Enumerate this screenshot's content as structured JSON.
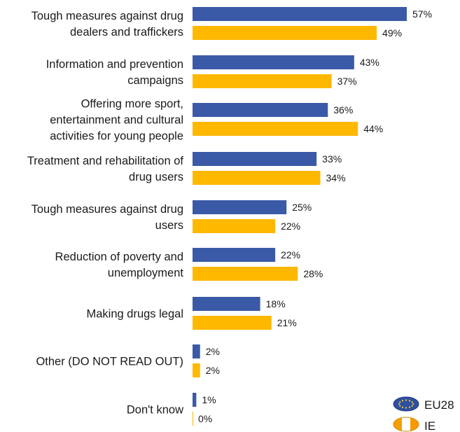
{
  "chart_data": {
    "type": "bar",
    "orientation": "horizontal",
    "categories": [
      [
        "Tough measures against drug",
        "dealers and traffickers"
      ],
      [
        "Information and prevention",
        "campaigns"
      ],
      [
        "Offering more sport,",
        "entertainment and cultural",
        "activities for young people"
      ],
      [
        "Treatment and rehabilitation of",
        "drug users"
      ],
      [
        "Tough measures against drug",
        "users"
      ],
      [
        "Reduction of poverty and",
        "unemployment"
      ],
      [
        "Making drugs legal"
      ],
      [
        "Other (DO NOT READ OUT)"
      ],
      [
        "Don't know"
      ]
    ],
    "series": [
      {
        "name": "EU28",
        "color": "#3a5aa7",
        "values": [
          57,
          43,
          36,
          33,
          25,
          22,
          18,
          2,
          1
        ]
      },
      {
        "name": "IE",
        "color": "#ffb800",
        "values": [
          49,
          37,
          44,
          34,
          22,
          28,
          21,
          2,
          0
        ]
      }
    ],
    "value_suffix": "%",
    "xlim": [
      0,
      60
    ],
    "legend_position": "bottom-right",
    "grid": false
  },
  "legend": {
    "items": [
      {
        "label": "EU28",
        "icon": "eu-flag-icon"
      },
      {
        "label": "IE",
        "icon": "ireland-flag-icon"
      }
    ]
  }
}
